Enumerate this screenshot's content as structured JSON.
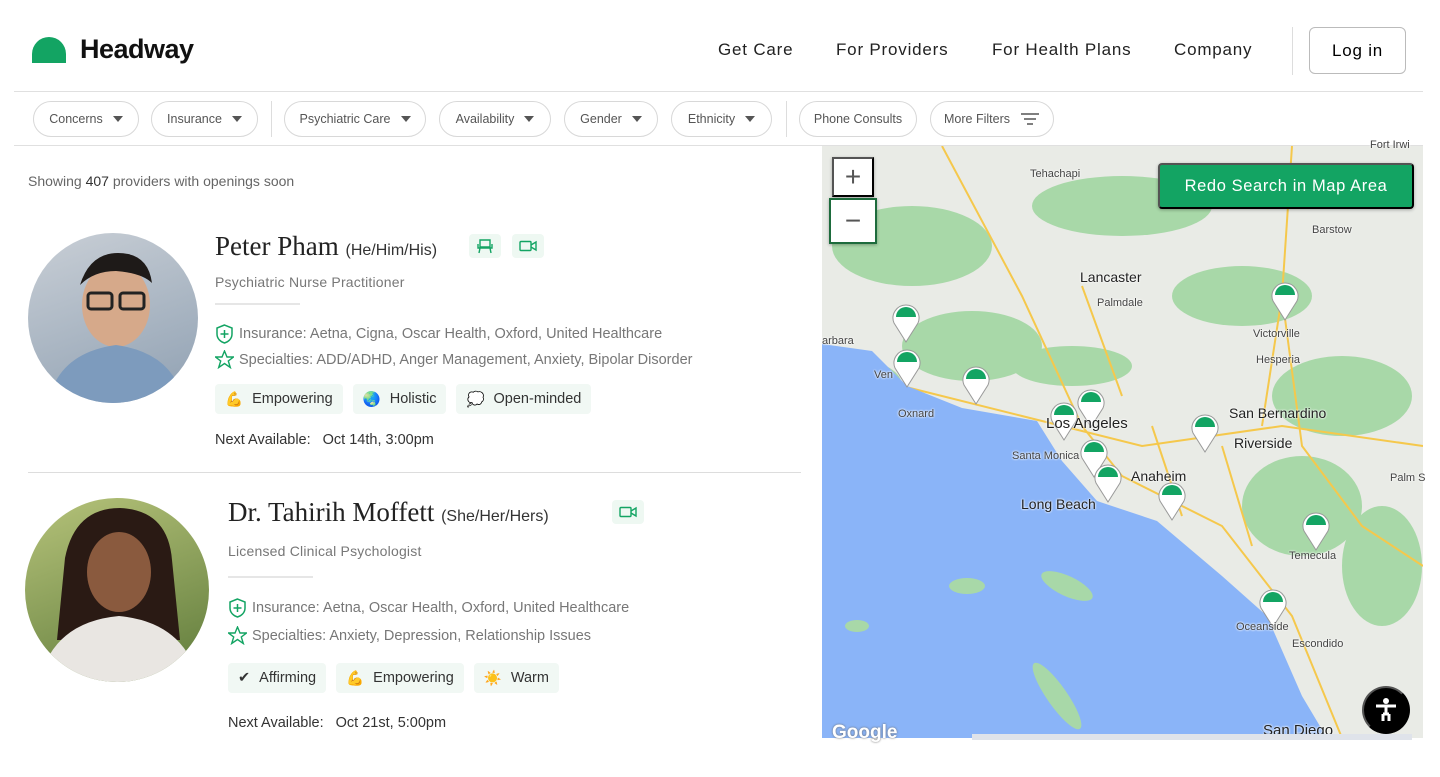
{
  "header": {
    "brand": "Headway",
    "nav": [
      "Get Care",
      "For Providers",
      "For Health Plans",
      "Company"
    ],
    "login": "Log in"
  },
  "filters": [
    "Concerns",
    "Insurance",
    "Psychiatric Care",
    "Availability",
    "Gender",
    "Ethnicity",
    "Phone Consults",
    "More Filters"
  ],
  "results": {
    "prefix": "Showing",
    "count": "407",
    "suffix": "providers with openings soon"
  },
  "providers": [
    {
      "name": "Peter Pham",
      "pronouns": "(He/Him/His)",
      "modes": [
        "in-person-chair-icon",
        "video-icon"
      ],
      "title": "Psychiatric Nurse Practitioner",
      "insurance": "Insurance: Aetna, Cigna, Oscar Health, Oxford, United Healthcare",
      "specialties": "Specialties: ADD/ADHD, Anger Management, Anxiety, Bipolar Disorder",
      "tags": [
        {
          "emoji": "💪",
          "label": "Empowering"
        },
        {
          "emoji": "🌏",
          "label": "Holistic"
        },
        {
          "emoji": "💭",
          "label": "Open-minded"
        }
      ],
      "next_label": "Next Available:",
      "next_value": "Oct 14th, 3:00pm"
    },
    {
      "name": "Dr. Tahirih Moffett",
      "pronouns": "(She/Her/Hers)",
      "modes": [
        "video-icon"
      ],
      "title": "Licensed Clinical Psychologist",
      "insurance": "Insurance: Aetna, Oscar Health, Oxford, United Healthcare",
      "specialties": "Specialties: Anxiety, Depression, Relationship Issues",
      "tags": [
        {
          "emoji": "✔",
          "label": "Affirming"
        },
        {
          "emoji": "💪",
          "label": "Empowering"
        },
        {
          "emoji": "☀️",
          "label": "Warm"
        }
      ],
      "next_label": "Next Available:",
      "next_value": "Oct 21st, 5:00pm"
    }
  ],
  "map": {
    "zoom_in": "+",
    "zoom_out": "−",
    "redo": "Redo Search in Map Area",
    "google": "Google",
    "labels": [
      "Tehachapi",
      "Barstow",
      "Lancaster",
      "Palmdale",
      "Victorville",
      "Hesperia",
      "arbara",
      "Ven",
      "Oxnard",
      "Los Angeles",
      "Santa Monica",
      "San Bernardino",
      "Riverside",
      "Anaheim",
      "Long Beach",
      "Temecula",
      "Oceanside",
      "Escondido",
      "San Diego",
      "Palm S",
      "Fort Irwi"
    ],
    "colors": {
      "ocean": "#8ab4f8",
      "land": "#e9ebe6",
      "park": "#a8d8a8",
      "pin": "#13a463"
    }
  }
}
